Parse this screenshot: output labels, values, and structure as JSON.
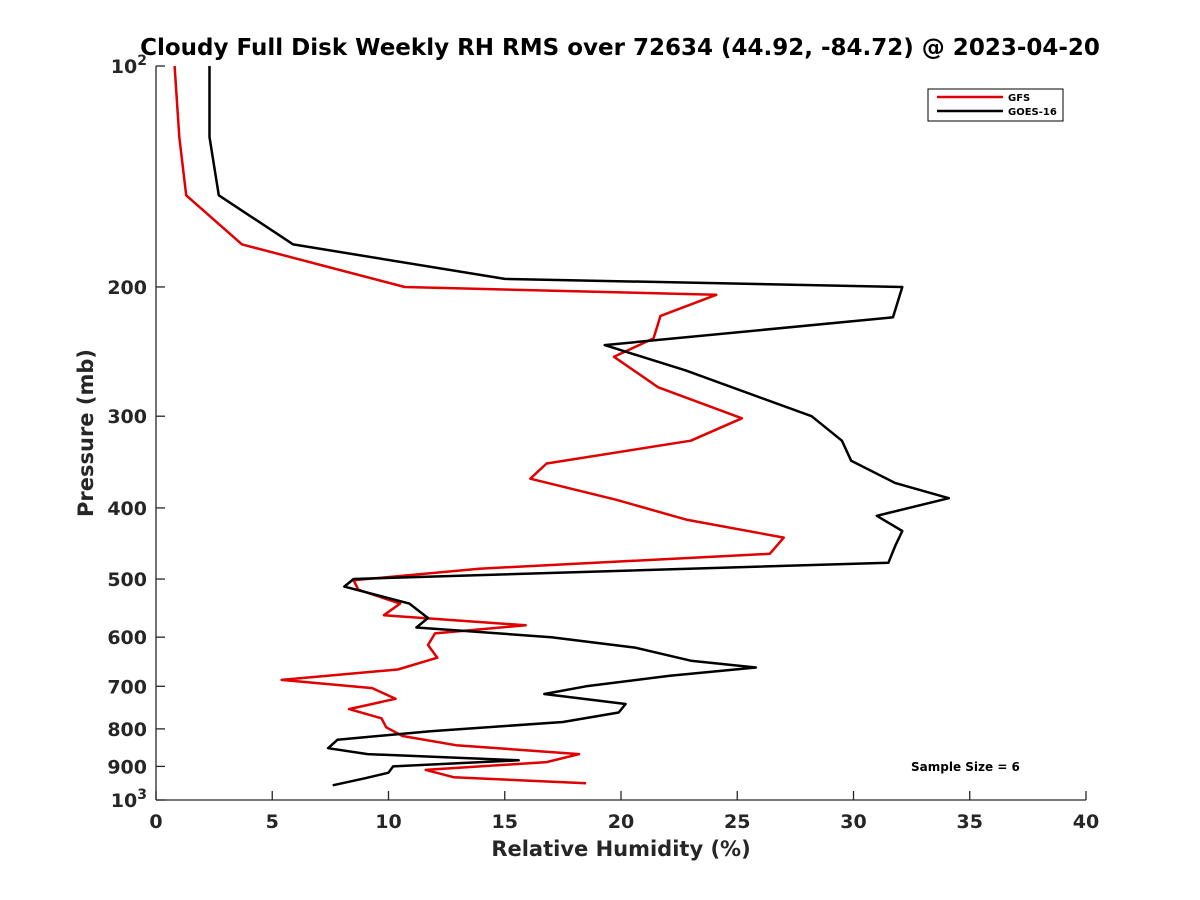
{
  "chart_data": {
    "type": "line",
    "title": "Cloudy Full Disk Weekly RH RMS over 72634 (44.92, -84.72) @ 2023-04-20",
    "xlabel": "Relative Humidity (%)",
    "ylabel": "Pressure (mb)",
    "xlim": [
      0,
      40
    ],
    "ylim": [
      100,
      1000
    ],
    "y_scale": "log",
    "y_reversed": true,
    "xticks": [
      0,
      5,
      10,
      15,
      20,
      25,
      30,
      35,
      40
    ],
    "xtick_labels": [
      "0",
      "5",
      "10",
      "15",
      "20",
      "25",
      "30",
      "35",
      "40"
    ],
    "yticks": [
      {
        "value": 100,
        "base": "10",
        "exp": "2"
      },
      {
        "value": 200,
        "label": "200"
      },
      {
        "value": 300,
        "label": "300"
      },
      {
        "value": 400,
        "label": "400"
      },
      {
        "value": 500,
        "label": "500"
      },
      {
        "value": 600,
        "label": "600"
      },
      {
        "value": 700,
        "label": "700"
      },
      {
        "value": 800,
        "label": "800"
      },
      {
        "value": 900,
        "label": "900"
      },
      {
        "value": 1000,
        "base": "10",
        "exp": "3"
      }
    ],
    "grid": false,
    "legend_position": "top-right",
    "annotation": "Sample Size = 6",
    "series": [
      {
        "name": "GFS",
        "color": "#e00000",
        "points": [
          [
            0.8,
            100
          ],
          [
            1.0,
            125
          ],
          [
            1.3,
            150
          ],
          [
            3.7,
            175
          ],
          [
            10.7,
            200
          ],
          [
            24.1,
            205
          ],
          [
            21.7,
            219
          ],
          [
            21.4,
            235
          ],
          [
            19.7,
            249
          ],
          [
            21.6,
            274
          ],
          [
            25.2,
            302
          ],
          [
            23.0,
            324
          ],
          [
            16.8,
            348
          ],
          [
            16.1,
            365
          ],
          [
            19.8,
            390
          ],
          [
            22.8,
            415
          ],
          [
            27.0,
            439
          ],
          [
            26.4,
            462
          ],
          [
            13.9,
            484
          ],
          [
            8.5,
            502
          ],
          [
            8.7,
            517
          ],
          [
            10.5,
            540
          ],
          [
            9.8,
            560
          ],
          [
            15.9,
            578
          ],
          [
            12.0,
            593
          ],
          [
            11.7,
            615
          ],
          [
            12.1,
            640
          ],
          [
            10.4,
            664
          ],
          [
            5.4,
            686
          ],
          [
            9.3,
            704
          ],
          [
            10.3,
            728
          ],
          [
            8.3,
            752
          ],
          [
            9.7,
            774
          ],
          [
            9.9,
            796
          ],
          [
            10.6,
            818
          ],
          [
            12.9,
            842
          ],
          [
            18.2,
            866
          ],
          [
            16.8,
            888
          ],
          [
            11.6,
            910
          ],
          [
            12.8,
            931
          ],
          [
            18.5,
            949
          ]
        ]
      },
      {
        "name": "GOES-16",
        "color": "#000000",
        "points": [
          [
            2.3,
            100
          ],
          [
            2.3,
            115
          ],
          [
            2.3,
            125
          ],
          [
            2.7,
            150
          ],
          [
            5.9,
            175
          ],
          [
            15.0,
            195
          ],
          [
            32.1,
            200
          ],
          [
            31.7,
            220
          ],
          [
            19.3,
            240
          ],
          [
            22.8,
            260
          ],
          [
            28.2,
            300
          ],
          [
            29.5,
            324
          ],
          [
            29.9,
            345
          ],
          [
            31.8,
            370
          ],
          [
            34.1,
            388
          ],
          [
            31.0,
            410
          ],
          [
            32.1,
            430
          ],
          [
            31.8,
            450
          ],
          [
            31.5,
            475
          ],
          [
            8.5,
            500
          ],
          [
            8.1,
            512
          ],
          [
            10.9,
            540
          ],
          [
            11.7,
            565
          ],
          [
            11.2,
            582
          ],
          [
            17.0,
            600
          ],
          [
            20.6,
            620
          ],
          [
            23.0,
            646
          ],
          [
            25.8,
            660
          ],
          [
            22.1,
            677
          ],
          [
            18.5,
            700
          ],
          [
            16.7,
            717
          ],
          [
            20.2,
            740
          ],
          [
            19.9,
            760
          ],
          [
            17.5,
            783
          ],
          [
            11.8,
            806
          ],
          [
            7.8,
            828
          ],
          [
            7.4,
            850
          ],
          [
            9.1,
            866
          ],
          [
            15.6,
            883
          ],
          [
            10.2,
            900
          ],
          [
            10.0,
            918
          ],
          [
            9.0,
            934
          ],
          [
            7.6,
            955
          ]
        ]
      }
    ]
  }
}
